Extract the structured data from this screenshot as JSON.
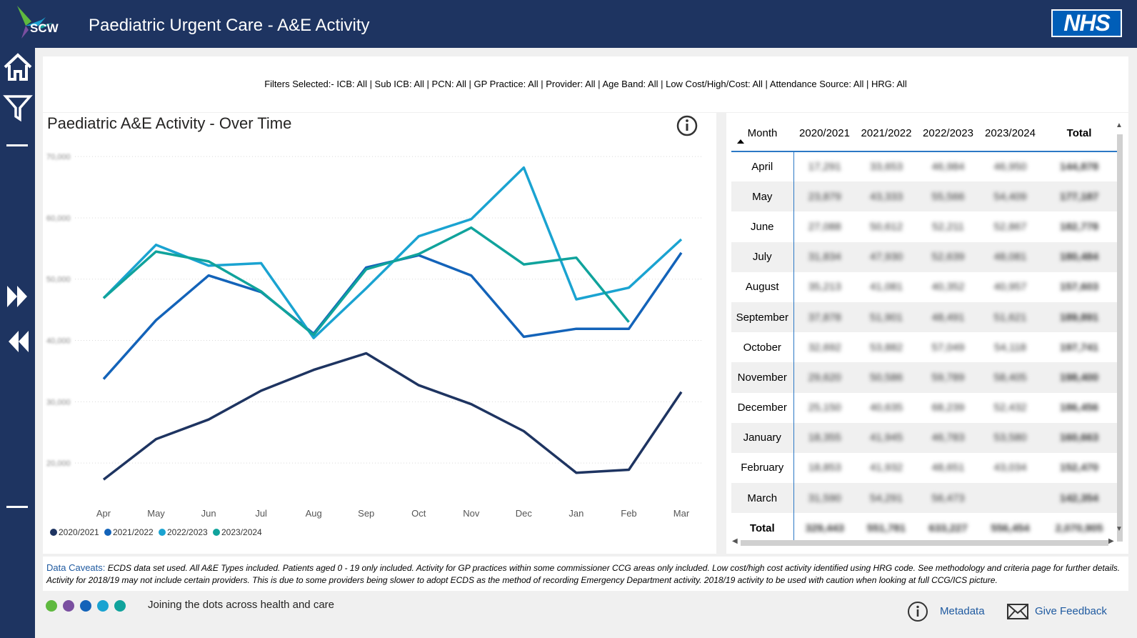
{
  "header": {
    "logo_text": "SCW",
    "title": "Paediatric Urgent Care - A&E Activity",
    "nhs_logo": "NHS"
  },
  "sidebar": {
    "icons": [
      "home-icon",
      "filter-icon",
      "fast-forward-icon",
      "rewind-icon"
    ]
  },
  "filters": {
    "text": "Filters Selected:- ICB: All | Sub ICB: All | PCN: All | GP Practice: All | Provider: All | Age Band: All | Low Cost/High/Cost: All | Attendance Source: All | HRG: All"
  },
  "chart": {
    "title": "Paediatric A&E Activity - Over Time",
    "info_icon": "info-icon",
    "y_tick_labels": [
      "70,000",
      "60,000",
      "50,000",
      "40,000",
      "30,000",
      "20,000"
    ]
  },
  "chart_data": {
    "type": "line",
    "categories": [
      "Apr",
      "May",
      "Jun",
      "Jul",
      "Aug",
      "Sep",
      "Oct",
      "Nov",
      "Dec",
      "Jan",
      "Feb",
      "Mar"
    ],
    "ylim": [
      15000,
      72000
    ],
    "grid": true,
    "legend": "bottom-left",
    "series": [
      {
        "name": "2020/2021",
        "color": "#1e3461",
        "values": [
          17300,
          23900,
          27100,
          31800,
          35200,
          37900,
          32700,
          29600,
          25200,
          18400,
          18900,
          31600
        ]
      },
      {
        "name": "2021/2022",
        "color": "#1363b9",
        "values": [
          33700,
          43300,
          50600,
          47900,
          41100,
          51900,
          53900,
          50600,
          40600,
          41900,
          41900,
          54300
        ]
      },
      {
        "name": "2022/2023",
        "color": "#1aa3d1",
        "values": [
          46900,
          55600,
          52200,
          52600,
          40400,
          48500,
          57000,
          59800,
          68200,
          46700,
          48600,
          56500
        ]
      },
      {
        "name": "2023/2024",
        "color": "#10a39c",
        "values": [
          46900,
          54500,
          52900,
          48000,
          40900,
          51600,
          54100,
          58400,
          52400,
          53500,
          43000,
          null
        ]
      }
    ]
  },
  "table": {
    "headers": [
      "Month",
      "2020/2021",
      "2021/2022",
      "2022/2023",
      "2023/2024",
      "Total"
    ],
    "rows": [
      [
        "April",
        "17,291",
        "33,653",
        "46,984",
        "46,950",
        "144,878"
      ],
      [
        "May",
        "23,879",
        "43,333",
        "55,566",
        "54,409",
        "177,187"
      ],
      [
        "June",
        "27,088",
        "50,612",
        "52,211",
        "52,867",
        "182,778"
      ],
      [
        "July",
        "31,834",
        "47,930",
        "52,639",
        "48,081",
        "180,484"
      ],
      [
        "August",
        "35,213",
        "41,081",
        "40,352",
        "40,957",
        "157,603"
      ],
      [
        "September",
        "37,878",
        "51,901",
        "48,491",
        "51,621",
        "189,891"
      ],
      [
        "October",
        "32,692",
        "53,882",
        "57,049",
        "54,118",
        "197,741"
      ],
      [
        "November",
        "29,620",
        "50,586",
        "59,789",
        "58,405",
        "198,400"
      ],
      [
        "December",
        "25,150",
        "40,635",
        "68,239",
        "52,432",
        "186,456"
      ],
      [
        "January",
        "18,355",
        "41,945",
        "46,783",
        "53,580",
        "160,663"
      ],
      [
        "February",
        "18,853",
        "41,932",
        "48,651",
        "43,034",
        "152,470"
      ],
      [
        "March",
        "31,590",
        "54,291",
        "56,473",
        "",
        "142,354"
      ]
    ],
    "total_row": [
      "Total",
      "329,443",
      "551,781",
      "633,227",
      "556,454",
      "2,070,905"
    ]
  },
  "caveats": {
    "lead": "Data Caveats:",
    "line1": "ECDS data set used. All A&E Types included. Patients aged 0 - 19 only included. Activity for GP practices within some commissioner CCG areas only included. Low cost/high cost activity identified using HRG code. See methodology and criteria page for further details.",
    "line2": "Activity for 2018/19 may not include certain providers. This is due to some providers being slower to adopt ECDS as the method of recording Emergency Department activity. 2018/19 activity to be used with caution when looking at full CCG/ICS picture."
  },
  "footer": {
    "dot_colors": [
      "#5fb93f",
      "#7a4fa0",
      "#1363b9",
      "#1aa3d1",
      "#10a39c"
    ],
    "tagline": "Joining the dots across health and care",
    "metadata_label": "Metadata",
    "feedback_label": "Give Feedback"
  }
}
